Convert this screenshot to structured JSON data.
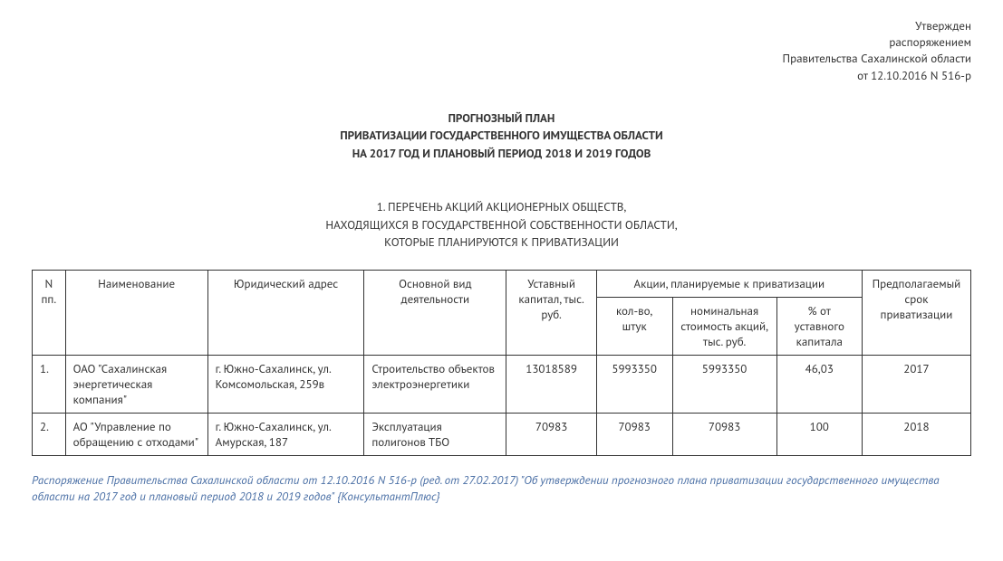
{
  "approval": {
    "line1": "Утвержден",
    "line2": "распоряжением",
    "line3": "Правительства Сахалинской области",
    "line4": "от 12.10.2016 N 516-р"
  },
  "title": {
    "line1": "ПРОГНОЗНЫЙ ПЛАН",
    "line2": "ПРИВАТИЗАЦИИ ГОСУДАРСТВЕННОГО ИМУЩЕСТВА ОБЛАСТИ",
    "line3": "НА 2017 ГОД И ПЛАНОВЫЙ ПЕРИОД 2018 И 2019 ГОДОВ"
  },
  "subtitle": {
    "line1": "1. ПЕРЕЧЕНЬ АКЦИЙ АКЦИОНЕРНЫХ ОБЩЕСТВ,",
    "line2": "НАХОДЯЩИХСЯ В ГОСУДАРСТВЕННОЙ СОБСТВЕННОСТИ ОБЛАСТИ,",
    "line3": "КОТОРЫЕ ПЛАНИРУЮТСЯ К ПРИВАТИЗАЦИИ"
  },
  "table": {
    "headers": {
      "num": "N пп.",
      "name": "Наименование",
      "address": "Юридический адрес",
      "activity": "Основной вид деятельности",
      "capital": "Уставный капитал, тыс. руб.",
      "sharesGroup": "Акции, планируемые к приватизации",
      "quantity": "кол-во, штук",
      "nominal": "номинальная стоимость акций, тыс. руб.",
      "percent": "% от уставного капитала",
      "year": "Предполагаемый срок приватизации"
    },
    "rows": [
      {
        "num": "1.",
        "name": "ОАО \"Сахалинская энергетическая компания\"",
        "address": "г. Южно-Сахалинск, ул. Комсомольская, 259в",
        "activity": "Строительство объектов электроэнергетики",
        "capital": "13018589",
        "quantity": "5993350",
        "nominal": "5993350",
        "percent": "46,03",
        "year": "2017"
      },
      {
        "num": "2.",
        "name": "АО \"Управление по обращению с отходами\"",
        "address": "г. Южно-Сахалинск, ул. Амурская, 187",
        "activity": "Эксплуатация полигонов ТБО",
        "capital": "70983",
        "quantity": "70983",
        "nominal": "70983",
        "percent": "100",
        "year": "2018"
      }
    ]
  },
  "footer": "Распоряжение Правительства Сахалинской области от 12.10.2016 N 516-р (ред. от 27.02.2017) \"Об утверждении прогнозного плана приватизации государственного имущества области на 2017 год и плановый период 2018 и 2019 годов\" {КонсультантПлюс}"
}
